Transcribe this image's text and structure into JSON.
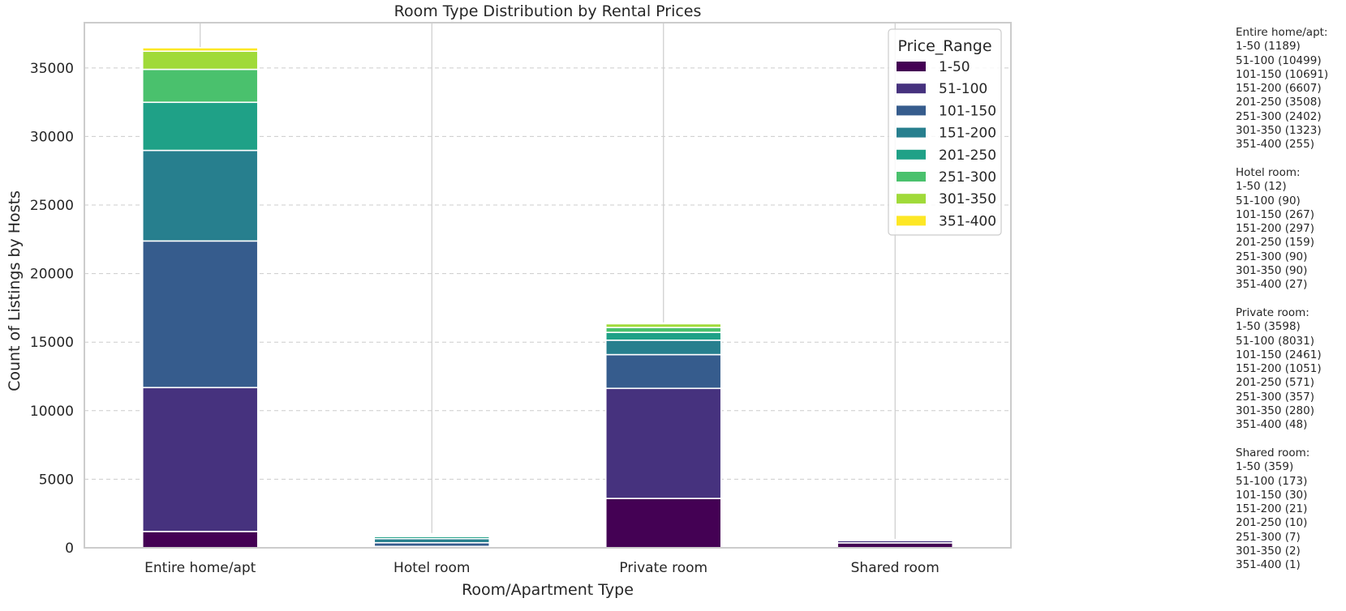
{
  "chart_data": {
    "type": "bar",
    "stacked": true,
    "title": "Room Type Distribution by Rental Prices",
    "xlabel": "Room/Apartment Type",
    "ylabel": "Count of Listings by Hosts",
    "categories": [
      "Entire home/apt",
      "Hotel room",
      "Private room",
      "Shared room"
    ],
    "ylim": [
      0,
      38300
    ],
    "yticks": [
      0,
      5000,
      10000,
      15000,
      20000,
      25000,
      30000,
      35000
    ],
    "ytick_labels": [
      "0",
      "5000",
      "10000",
      "15000",
      "20000",
      "25000",
      "30000",
      "35000"
    ],
    "grid": "horizontal dashed",
    "legend": {
      "title": "Price_Range",
      "position": "top-right"
    },
    "series": [
      {
        "name": "1-50",
        "color": "#440154",
        "values": [
          1189,
          12,
          3598,
          359
        ]
      },
      {
        "name": "51-100",
        "color": "#46327e",
        "values": [
          10499,
          90,
          8031,
          173
        ]
      },
      {
        "name": "101-150",
        "color": "#365c8d",
        "values": [
          10691,
          267,
          2461,
          30
        ]
      },
      {
        "name": "151-200",
        "color": "#277f8e",
        "values": [
          6607,
          297,
          1051,
          21
        ]
      },
      {
        "name": "201-250",
        "color": "#1fa187",
        "values": [
          3508,
          159,
          571,
          10
        ]
      },
      {
        "name": "251-300",
        "color": "#4ac16d",
        "values": [
          2402,
          90,
          357,
          7
        ]
      },
      {
        "name": "301-350",
        "color": "#a0da39",
        "values": [
          1323,
          90,
          280,
          2
        ]
      },
      {
        "name": "351-400",
        "color": "#fde725",
        "values": [
          255,
          27,
          48,
          1
        ]
      }
    ]
  },
  "notes": [
    {
      "header": "Entire home/apt:",
      "lines": [
        "1-50 (1189)",
        "51-100 (10499)",
        "101-150 (10691)",
        "151-200 (6607)",
        "201-250 (3508)",
        "251-300 (2402)",
        "301-350 (1323)",
        "351-400 (255)"
      ]
    },
    {
      "header": "Hotel room:",
      "lines": [
        "1-50 (12)",
        "51-100 (90)",
        "101-150 (267)",
        "151-200 (297)",
        "201-250 (159)",
        "251-300 (90)",
        "301-350 (90)",
        "351-400 (27)"
      ]
    },
    {
      "header": "Private room:",
      "lines": [
        "1-50 (3598)",
        "51-100 (8031)",
        "101-150 (2461)",
        "151-200 (1051)",
        "201-250 (571)",
        "251-300 (357)",
        "301-350 (280)",
        "351-400 (48)"
      ]
    },
    {
      "header": "Shared room:",
      "lines": [
        "1-50 (359)",
        "51-100 (173)",
        "101-150 (30)",
        "151-200 (21)",
        "201-250 (10)",
        "251-300 (7)",
        "301-350 (2)",
        "351-400 (1)"
      ]
    }
  ]
}
